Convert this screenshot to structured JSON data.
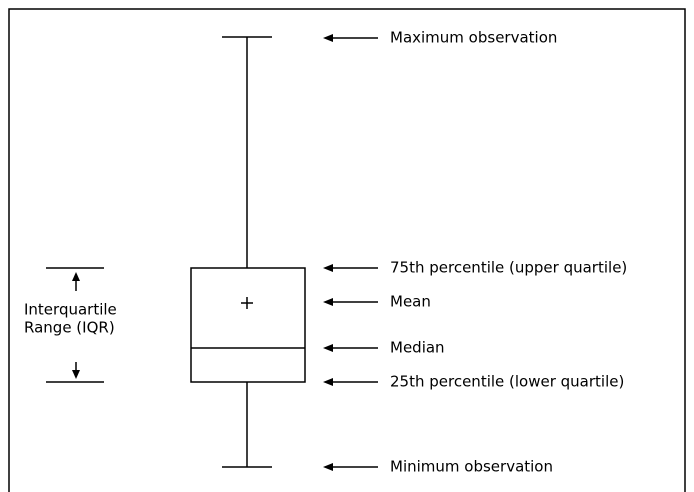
{
  "labels": [
    "Maximum observation",
    "75th percentile (upper quartile)",
    "Mean",
    "Median",
    "25th percentile (lower quartile)",
    "Minimum observation"
  ],
  "iqr_label": [
    "Interquartile",
    "Range (IQR)"
  ]
}
